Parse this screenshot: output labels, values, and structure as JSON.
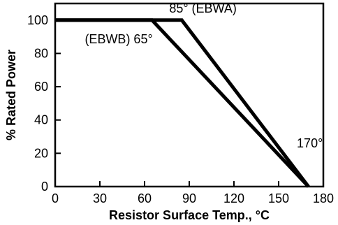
{
  "chart_data": {
    "type": "line",
    "xlabel": "Resistor Surface Temp., °C",
    "ylabel": "% Rated Power",
    "xlim": [
      0,
      180
    ],
    "ylim": [
      0,
      110
    ],
    "x_ticks": [
      0,
      30,
      60,
      90,
      120,
      150,
      180
    ],
    "y_ticks": [
      0,
      20,
      40,
      60,
      80,
      100
    ],
    "grid": false,
    "series": [
      {
        "name": "EBWA",
        "x": [
          0,
          85,
          170
        ],
        "y": [
          100,
          100,
          0
        ]
      },
      {
        "name": "EBWB",
        "x": [
          0,
          65,
          170
        ],
        "y": [
          100,
          100,
          0
        ]
      }
    ],
    "annotations": [
      {
        "text": "85° (EBWA)",
        "x": 85,
        "y": 100
      },
      {
        "text": "(EBWB) 65°",
        "x": 65,
        "y": 100
      },
      {
        "text": "170°",
        "x": 170,
        "y": 0
      }
    ]
  }
}
